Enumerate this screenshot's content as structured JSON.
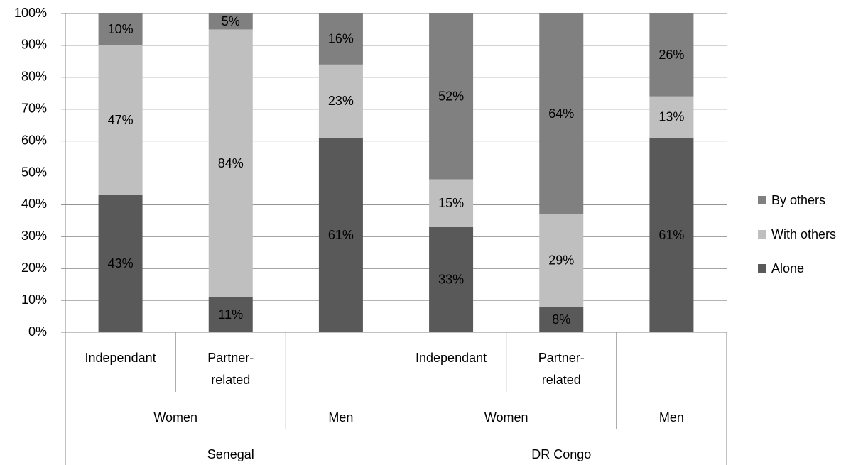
{
  "chart_data": {
    "type": "stacked_bar_100",
    "groups": [
      {
        "name": "Senegal",
        "subgroups": [
          {
            "name": "Women",
            "categories": [
              "Independant",
              "Partner-related"
            ]
          },
          {
            "name": "Men",
            "categories": [
              null
            ]
          }
        ]
      },
      {
        "name": "DR Congo",
        "subgroups": [
          {
            "name": "Women",
            "categories": [
              "Independant",
              "Partner-related"
            ]
          },
          {
            "name": "Men",
            "categories": [
              null
            ]
          }
        ]
      }
    ],
    "series": [
      {
        "name": "Alone",
        "color": "#595959",
        "values": [
          43,
          11,
          61,
          33,
          8,
          61
        ],
        "value_labels": [
          "43%",
          "11%",
          "61%",
          "33%",
          "8%",
          "61%"
        ]
      },
      {
        "name": "With others",
        "color": "#bfbfbf",
        "values": [
          47,
          84,
          23,
          15,
          29,
          13
        ],
        "value_labels": [
          "47%",
          "84%",
          "23%",
          "15%",
          "29%",
          "13%"
        ]
      },
      {
        "name": "By others",
        "color": "#808080",
        "values": [
          10,
          5,
          16,
          52,
          64,
          26
        ],
        "value_labels": [
          "10%",
          "5%",
          "16%",
          "52%",
          "64%",
          "26%"
        ]
      }
    ],
    "ylim": [
      0,
      100
    ],
    "yticks": [
      {
        "value": 0,
        "label": "0%"
      },
      {
        "value": 10,
        "label": "10%"
      },
      {
        "value": 20,
        "label": "20%"
      },
      {
        "value": 30,
        "label": "30%"
      },
      {
        "value": 40,
        "label": "40%"
      },
      {
        "value": 50,
        "label": "50%"
      },
      {
        "value": 60,
        "label": "60%"
      },
      {
        "value": 70,
        "label": "70%"
      },
      {
        "value": 80,
        "label": "80%"
      },
      {
        "value": 90,
        "label": "90%"
      },
      {
        "value": 100,
        "label": "100%"
      }
    ],
    "grid": true,
    "legend": "right"
  }
}
